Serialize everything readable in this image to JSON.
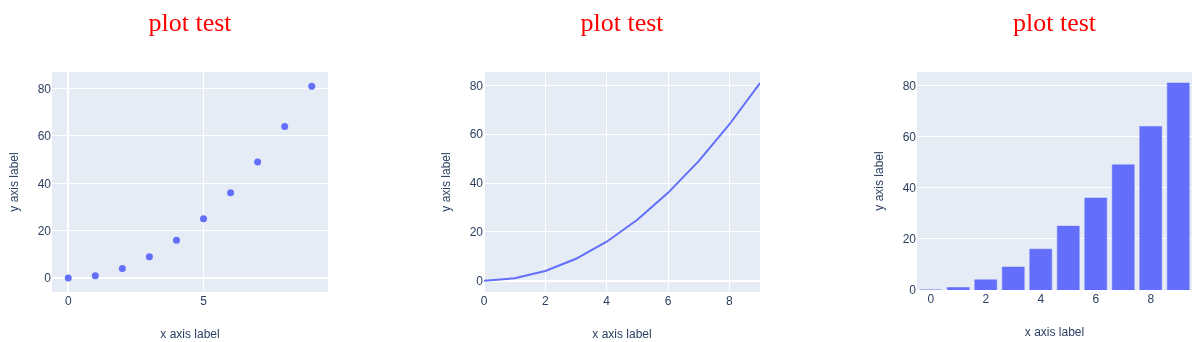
{
  "chart_data": [
    {
      "type": "scatter",
      "title": "plot test",
      "xlabel": "x axis label",
      "ylabel": "y axis label",
      "x": [
        0,
        1,
        2,
        3,
        4,
        5,
        6,
        7,
        8,
        9
      ],
      "values": [
        0,
        1,
        4,
        9,
        16,
        25,
        36,
        49,
        64,
        81
      ],
      "color": "#636efa",
      "marker": "circle",
      "xlim": [
        -0.6,
        9.6
      ],
      "xticks": [
        0,
        5
      ],
      "ylim": [
        -5.9,
        87
      ],
      "yticks": [
        0,
        20,
        40,
        60,
        80
      ],
      "grid": true,
      "legend": false
    },
    {
      "type": "line",
      "title": "plot test",
      "xlabel": "x axis label",
      "ylabel": "y axis label",
      "x": [
        0,
        1,
        2,
        3,
        4,
        5,
        6,
        7,
        8,
        9
      ],
      "values": [
        0,
        1,
        4,
        9,
        16,
        25,
        36,
        49,
        64,
        81
      ],
      "color": "#636efa",
      "xlim": [
        0,
        9
      ],
      "xticks": [
        0,
        2,
        4,
        6,
        8
      ],
      "ylim": [
        -4.6,
        85.5
      ],
      "yticks": [
        0,
        20,
        40,
        60,
        80
      ],
      "grid": true,
      "legend": false
    },
    {
      "type": "bar",
      "title": "plot test",
      "xlabel": "x axis label",
      "ylabel": "y axis label",
      "x": [
        0,
        1,
        2,
        3,
        4,
        5,
        6,
        7,
        8,
        9
      ],
      "values": [
        0,
        1,
        4,
        9,
        16,
        25,
        36,
        49,
        64,
        81
      ],
      "color": "#636efa",
      "xlim": [
        -0.5,
        9.5
      ],
      "xticks": [
        0,
        2,
        4,
        6,
        8
      ],
      "ylim": [
        0,
        85.3
      ],
      "yticks": [
        0,
        20,
        40,
        60,
        80
      ],
      "grid": "y",
      "legend": false
    }
  ]
}
